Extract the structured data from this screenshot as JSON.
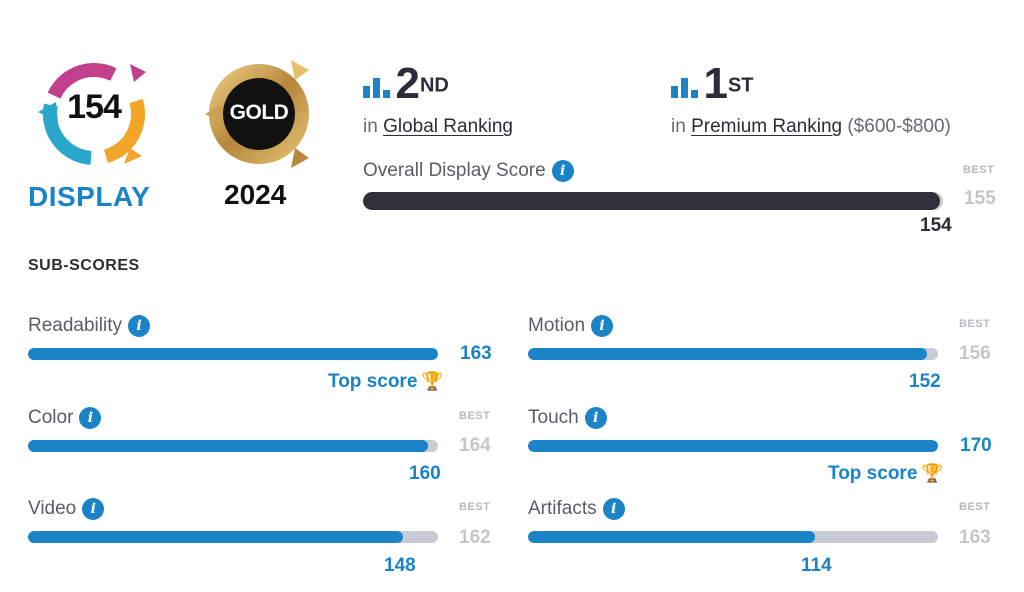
{
  "badge": {
    "score": "154",
    "category": "DISPLAY",
    "award": "GOLD",
    "year": "2024"
  },
  "rankings": [
    {
      "place": "2",
      "suffix": "ND",
      "prefix": "in",
      "link": "Global Ranking",
      "extra": ""
    },
    {
      "place": "1",
      "suffix": "ST",
      "prefix": "in",
      "link": "Premium Ranking",
      "extra": "($600-$800)"
    }
  ],
  "overall": {
    "label": "Overall Display Score",
    "best_label": "BEST",
    "best": "155",
    "value": "154",
    "fraction": 0.994
  },
  "subscores": {
    "title": "SUB-SCORES",
    "items": [
      {
        "label": "Readability",
        "value": "163",
        "best_label": "",
        "best": "",
        "top_score": "Top score",
        "fraction": 1.0
      },
      {
        "label": "Motion",
        "value": "152",
        "best_label": "BEST",
        "best": "156",
        "top_score": "",
        "fraction": 0.974
      },
      {
        "label": "Color",
        "value": "160",
        "best_label": "BEST",
        "best": "164",
        "top_score": "",
        "fraction": 0.976
      },
      {
        "label": "Touch",
        "value": "170",
        "best_label": "",
        "best": "",
        "top_score": "Top score",
        "fraction": 1.0
      },
      {
        "label": "Video",
        "value": "148",
        "best_label": "BEST",
        "best": "162",
        "top_score": "",
        "fraction": 0.914
      },
      {
        "label": "Artifacts",
        "value": "114",
        "best_label": "BEST",
        "best": "163",
        "top_score": "",
        "fraction": 0.699
      }
    ]
  },
  "icons": {
    "info": "info-icon",
    "rank": "bar-chart-icon",
    "trophy": "trophy-icon"
  },
  "colors": {
    "accent": "#1a84c7",
    "track": "#c9cbd4",
    "overall_fill": "#2e313b",
    "gold": "#c9a04a",
    "trophy": "#e9b23d"
  }
}
